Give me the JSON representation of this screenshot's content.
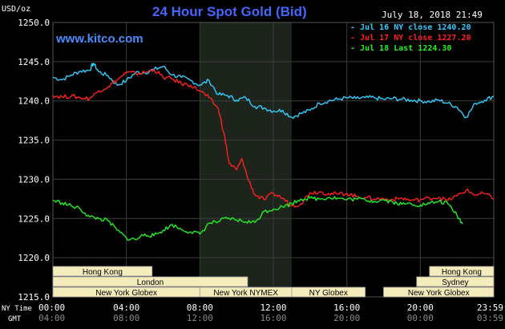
{
  "chart_data": {
    "type": "line",
    "title": "24 Hour Spot Gold (Bid)",
    "website": "www.kitco.com",
    "date_label": "July 18, 2018 21:49",
    "y_unit": "USD/oz",
    "ylim": [
      1215,
      1250
    ],
    "yticks": [
      1250,
      1245,
      1240,
      1235,
      1230,
      1225,
      1220,
      1215
    ],
    "ytick_labels": [
      "1250.0",
      "1245.0",
      "1240.0",
      "1235.0",
      "1230.0",
      "1225.0",
      "1220.0",
      "1215.0"
    ],
    "x_unit": "hours",
    "xlim": [
      0,
      24
    ],
    "xticks": [
      0,
      4,
      8,
      12,
      16,
      20,
      24
    ],
    "xtick_labels_ny": [
      "00:00",
      "04:00",
      "08:00",
      "12:00",
      "16:00",
      "20:00",
      "23:59"
    ],
    "xtick_labels_gmt": [
      "04:00",
      "08:00",
      "12:00",
      "16:00",
      "20:00",
      "00:00",
      "03:59"
    ],
    "x_axis_labels": [
      "NY Time",
      "GMT"
    ],
    "grid": true,
    "legend_position": "top-right",
    "highlight_range": [
      8.0,
      13.0
    ],
    "series": [
      {
        "name": "Jul 16 NY close 1240.20",
        "color": "#33ccff",
        "x": [
          0,
          0.5,
          1,
          1.5,
          2,
          2.2,
          2.5,
          3,
          3.5,
          4,
          4.5,
          5,
          5.5,
          6,
          6.5,
          7,
          7.5,
          8,
          8.5,
          9,
          9.5,
          10,
          10.5,
          11,
          11.5,
          12,
          12.5,
          13,
          13.5,
          14,
          14.5,
          15,
          15.5,
          16,
          16.5,
          17,
          17.5,
          18,
          18.5,
          19,
          19.5,
          20,
          20.5,
          21,
          21.5,
          22,
          22.5,
          23,
          23.5,
          24
        ],
        "values": [
          1243.0,
          1242.7,
          1243.3,
          1243.8,
          1243.9,
          1244.8,
          1243.7,
          1243.2,
          1242.0,
          1242.6,
          1243.6,
          1243.6,
          1244.0,
          1244.4,
          1243.3,
          1243.0,
          1242.6,
          1242.0,
          1242.6,
          1240.8,
          1240.7,
          1240.1,
          1240.4,
          1239.3,
          1239.1,
          1238.7,
          1238.8,
          1237.9,
          1238.4,
          1238.8,
          1239.7,
          1240.0,
          1240.2,
          1240.4,
          1240.3,
          1240.4,
          1240.4,
          1240.2,
          1240.3,
          1240.2,
          1240.1,
          1240.0,
          1239.9,
          1240.1,
          1239.7,
          1239.2,
          1237.9,
          1239.7,
          1240.1,
          1240.6
        ]
      },
      {
        "name": "Jul 17 NY close 1227.20",
        "color": "#ff2020",
        "x": [
          0,
          0.5,
          1,
          1.5,
          2,
          2.5,
          3,
          3.5,
          4,
          4.5,
          5,
          5.5,
          6,
          6.5,
          7,
          7.5,
          8,
          8.5,
          9,
          9.3,
          9.6,
          10,
          10.3,
          10.6,
          11,
          11.5,
          12,
          12.5,
          13,
          13.5,
          14,
          14.5,
          15,
          15.5,
          16,
          16.5,
          17,
          17.5,
          18,
          18.5,
          19,
          19.5,
          20,
          20.5,
          21,
          21.5,
          22,
          22.5,
          23,
          23.5,
          24
        ],
        "values": [
          1240.7,
          1240.5,
          1240.6,
          1240.4,
          1240.3,
          1241.3,
          1241.8,
          1242.7,
          1243.6,
          1243.5,
          1243.6,
          1244.0,
          1243.0,
          1242.8,
          1242.2,
          1242.0,
          1241.3,
          1240.4,
          1239.0,
          1236.0,
          1232.0,
          1231.2,
          1232.6,
          1230.2,
          1228.0,
          1227.4,
          1228.2,
          1227.6,
          1226.6,
          1226.9,
          1228.3,
          1228.4,
          1228.2,
          1228.1,
          1228.2,
          1227.8,
          1227.7,
          1227.5,
          1227.5,
          1227.4,
          1227.6,
          1227.3,
          1227.4,
          1227.6,
          1227.7,
          1227.3,
          1227.9,
          1228.6,
          1228.0,
          1228.2,
          1227.5
        ]
      },
      {
        "name": "Jul 18 Last 1224.30",
        "color": "#22ee22",
        "x": [
          0,
          0.5,
          1,
          1.5,
          2,
          2.5,
          3,
          3.5,
          4,
          4.5,
          5,
          5.5,
          6,
          6.5,
          7,
          7.5,
          8,
          8.5,
          9,
          9.5,
          10,
          10.5,
          11,
          11.5,
          12,
          12.5,
          13,
          13.5,
          14,
          14.5,
          15,
          15.5,
          16,
          16.5,
          17,
          17.5,
          18,
          18.5,
          19,
          19.5,
          20,
          20.5,
          21,
          21.5,
          22,
          22.3
        ],
        "values": [
          1227.3,
          1227.0,
          1226.6,
          1226.2,
          1225.2,
          1225.0,
          1224.7,
          1223.5,
          1222.5,
          1222.3,
          1223.0,
          1222.8,
          1223.5,
          1224.2,
          1223.6,
          1223.3,
          1223.0,
          1224.4,
          1224.6,
          1225.0,
          1224.8,
          1224.6,
          1224.5,
          1225.9,
          1226.2,
          1226.5,
          1226.9,
          1227.5,
          1227.6,
          1227.5,
          1227.7,
          1227.6,
          1227.4,
          1227.5,
          1227.4,
          1227.2,
          1227.4,
          1227.1,
          1226.8,
          1226.9,
          1226.7,
          1226.9,
          1227.2,
          1226.9,
          1225.4,
          1224.3
        ]
      }
    ],
    "sessions": [
      {
        "label": "Hong Kong",
        "row": 0,
        "start": 0.0,
        "end": 5.4
      },
      {
        "label": "Hong Kong",
        "row": 0,
        "start": 20.5,
        "end": 24.0
      },
      {
        "label": "London",
        "row": 1,
        "start": 0.0,
        "end": 10.6
      },
      {
        "label": "Sydney",
        "row": 1,
        "start": 19.8,
        "end": 24.0
      },
      {
        "label": "New York Globex",
        "row": 2,
        "start": 0.0,
        "end": 8.0
      },
      {
        "label": "New York NYMEX",
        "row": 2,
        "start": 8.0,
        "end": 13.0
      },
      {
        "label": "NY Globex",
        "row": 2,
        "start": 13.0,
        "end": 17.0
      },
      {
        "label": "New York Globex",
        "row": 2,
        "start": 18.0,
        "end": 24.0
      }
    ]
  }
}
